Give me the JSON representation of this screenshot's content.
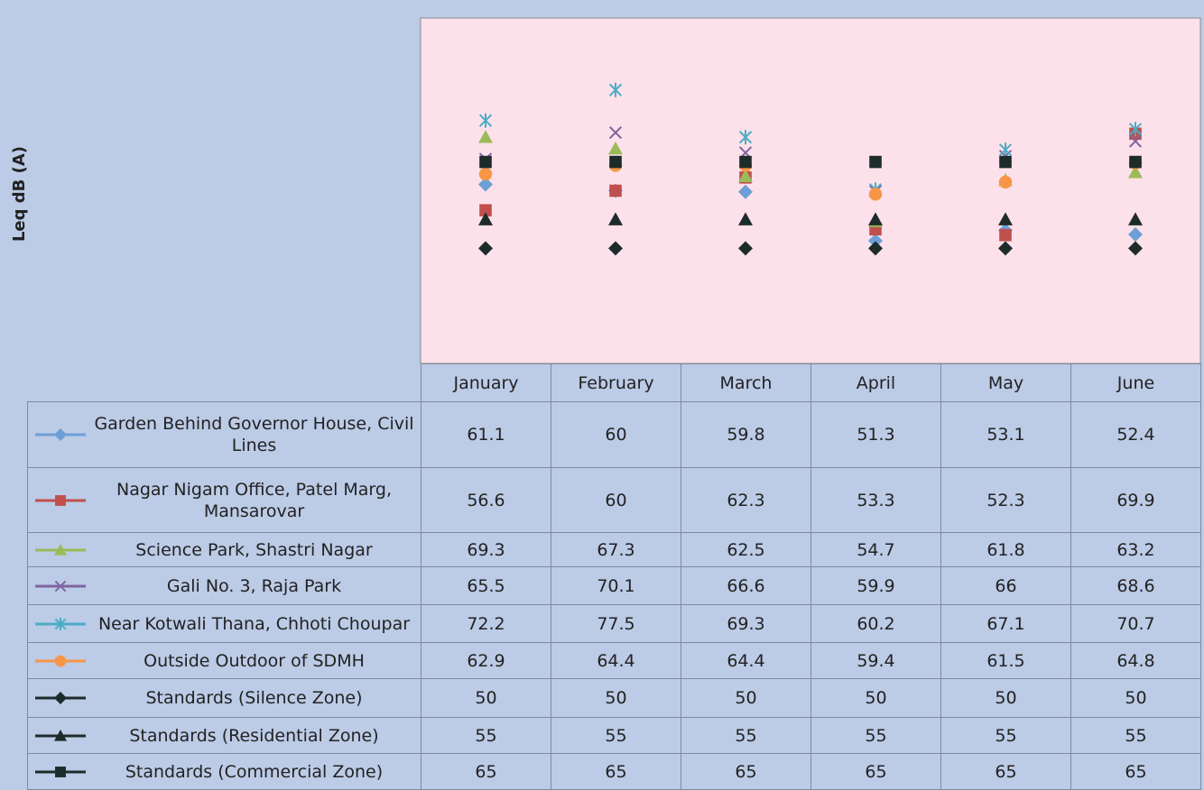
{
  "chart_data": {
    "type": "line",
    "y_label": "Leq dB (A)",
    "categories": [
      "January",
      "February",
      "March",
      "April",
      "May",
      "June"
    ],
    "ylim": [
      30,
      90
    ],
    "yticks": [
      30,
      40,
      50,
      60,
      70,
      80,
      90
    ],
    "grid": true,
    "series": [
      {
        "name": "Garden Behind Governor House, Civil Lines",
        "color": "#6d9fd6",
        "marker": "diamond",
        "values": [
          61.1,
          60,
          59.8,
          51.3,
          53.1,
          52.4
        ]
      },
      {
        "name": "Nagar Nigam Office, Patel Marg, Mansarovar",
        "color": "#c0504d",
        "marker": "square",
        "values": [
          56.6,
          60,
          62.3,
          53.3,
          52.3,
          69.9
        ]
      },
      {
        "name": "Science Park, Shastri Nagar",
        "color": "#9bbb59",
        "marker": "triangle",
        "values": [
          69.3,
          67.3,
          62.5,
          54.7,
          61.8,
          63.2
        ]
      },
      {
        "name": "Gali No. 3, Raja Park",
        "color": "#8064a2",
        "marker": "x",
        "values": [
          65.5,
          70.1,
          66.6,
          59.9,
          66,
          68.6
        ]
      },
      {
        "name": "Near Kotwali Thana, Chhoti Choupar",
        "color": "#4bacc6",
        "marker": "star",
        "values": [
          72.2,
          77.5,
          69.3,
          60.2,
          67.1,
          70.7
        ]
      },
      {
        "name": "Outside Outdoor of SDMH",
        "color": "#f79646",
        "marker": "circle",
        "values": [
          62.9,
          64.4,
          64.4,
          59.4,
          61.5,
          64.8
        ]
      },
      {
        "name": "Standards (Silence Zone)",
        "color": "#1e2b2b",
        "marker": "diamond",
        "values": [
          50,
          50,
          50,
          50,
          50,
          50
        ]
      },
      {
        "name": "Standards (Residential Zone)",
        "color": "#1e2b2b",
        "marker": "triangle",
        "values": [
          55,
          55,
          55,
          55,
          55,
          55
        ]
      },
      {
        "name": "Standards (Commercial Zone)",
        "color": "#1e2b2b",
        "marker": "square",
        "values": [
          65,
          65,
          65,
          65,
          65,
          65
        ]
      }
    ]
  }
}
